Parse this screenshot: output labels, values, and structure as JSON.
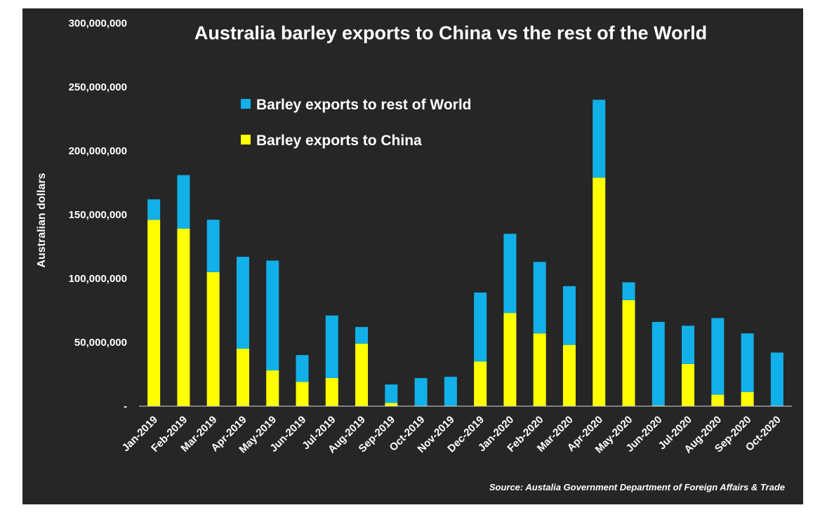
{
  "colors": {
    "background": "#262626",
    "rest_of_world": "#12B0E8",
    "china": "#FFFF00",
    "text": "#ffffff",
    "axis": "#d9d9d9"
  },
  "chart_data": {
    "type": "bar",
    "stacked": true,
    "title": "Australia barley exports to China vs the rest of the World",
    "ylabel": "Australian dollars",
    "xlabel": "",
    "source": "Source: Austalia Government Department of Foreign Affairs & Trade",
    "ylim": [
      0,
      300000000
    ],
    "yticks": [
      0,
      50000000,
      100000000,
      150000000,
      200000000,
      250000000,
      300000000
    ],
    "ytick_labels": [
      "-",
      "50,000,000",
      "100,000,000",
      "150,000,000",
      "200,000,000",
      "250,000,000",
      "300,000,000"
    ],
    "legend_position": "top-left inside plot",
    "grid": false,
    "categories": [
      "Jan-2019",
      "Feb-2019",
      "Mar-2019",
      "Apr-2019",
      "May-2019",
      "Jun-2019",
      "Jul-2019",
      "Aug-2019",
      "Sep-2019",
      "Oct-2019",
      "Nov-2019",
      "Dec-2019",
      "Jan-2020",
      "Feb-2020",
      "Mar-2020",
      "Apr-2020",
      "May-2020",
      "Jun-2020",
      "Jul-2020",
      "Aug-2020",
      "Sep-2020",
      "Oct-2020"
    ],
    "series": [
      {
        "name": "Barley exports to China",
        "color": "#FFFF00",
        "values": [
          146000000,
          139000000,
          105000000,
          45000000,
          28000000,
          19000000,
          22000000,
          49000000,
          2500000,
          0,
          0,
          35000000,
          73000000,
          57000000,
          48000000,
          179000000,
          83000000,
          500000,
          33000000,
          9000000,
          11000000,
          0
        ]
      },
      {
        "name": "Barley exports to rest of World",
        "color": "#12B0E8",
        "values": [
          16000000,
          42000000,
          41000000,
          72000000,
          86000000,
          21000000,
          49000000,
          13000000,
          14500000,
          22000000,
          23000000,
          54000000,
          62000000,
          56000000,
          46000000,
          61000000,
          14000000,
          65500000,
          30000000,
          60000000,
          46000000,
          42000000
        ]
      }
    ]
  }
}
